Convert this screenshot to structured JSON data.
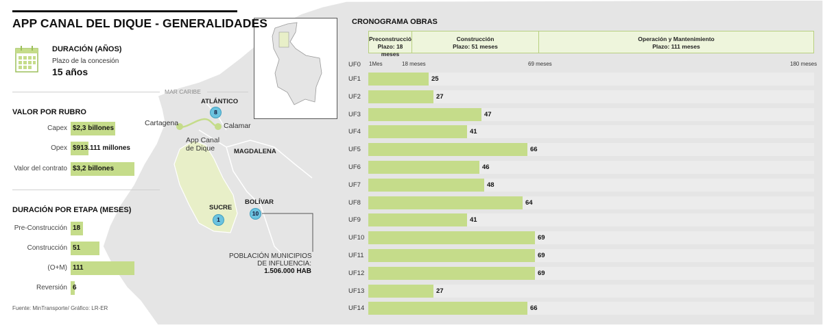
{
  "title": "APP CANAL DEL DIQUE - GENERALIDADES",
  "duration": {
    "heading": "DURACIÓN (AÑOS)",
    "sublabel": "Plazo de la concesión",
    "value": "15 años"
  },
  "sea_label": "MAR CARIBE",
  "valor": {
    "heading": "VALOR POR RUBRO",
    "items": [
      {
        "label": "Capex",
        "value": "$2,3 billones"
      },
      {
        "label": "Opex",
        "value": "$913.111 millones"
      },
      {
        "label": "Valor del contrato",
        "value": "$3,2 billones"
      }
    ]
  },
  "etapa": {
    "heading": "DURACIÓN POR ETAPA (MESES)",
    "items": [
      {
        "label": "Pre-Construcción",
        "value": 18
      },
      {
        "label": "Construcción",
        "value": 51
      },
      {
        "label": "(O+M)",
        "value": 111
      },
      {
        "label": "Reversión",
        "value": 6
      }
    ]
  },
  "source": "Fuente: MinTransporte/ Gráfico: LR-ER",
  "map": {
    "atlantico": {
      "name": "ATLÁNTICO",
      "count": "8"
    },
    "magdalena": "MAGDALENA",
    "sucre": {
      "name": "SUCRE",
      "count": "1"
    },
    "bolivar": {
      "name": "BOLÍVAR",
      "count": "10"
    },
    "cartagena": "Cartagena",
    "calamar": "Calamar",
    "canal_line1": "App Canal",
    "canal_line2": "de Dique",
    "pop_line1": "POBLACIÓN MUNICIPIOS",
    "pop_line2": "DE INFLUENCIA:",
    "pop_value": "1.506.000 HAB"
  },
  "cronograma": {
    "heading": "CRONOGRAMA OBRAS",
    "phases": [
      {
        "name": "Preconstrucción",
        "plazo": "Plazo: 18 meses"
      },
      {
        "name": "Construcción",
        "plazo": "Plazo: 51 meses"
      },
      {
        "name": "Operación y Mantenimiento",
        "plazo": "Plazo: 111 meses"
      }
    ],
    "axis_label": "UF0",
    "ticks": [
      "1Mes",
      "18 meses",
      "69 meses",
      "180 meses"
    ]
  },
  "chart_data": {
    "type": "bar",
    "orientation": "horizontal",
    "title": "CRONOGRAMA OBRAS",
    "categories": [
      "UF1",
      "UF2",
      "UF3",
      "UF4",
      "UF5",
      "UF6",
      "UF7",
      "UF8",
      "UF9",
      "UF10",
      "UF11",
      "UF12",
      "UF13",
      "UF14"
    ],
    "values": [
      25,
      27,
      47,
      41,
      66,
      46,
      48,
      64,
      41,
      69,
      69,
      69,
      27,
      66
    ],
    "xlim": [
      0,
      180
    ],
    "xlabel": "meses"
  },
  "colors": {
    "bar": "#c5dc8a",
    "badge": "#6cc3df",
    "map_land": "#e4e4e4",
    "map_highlight": "#e8efc8"
  }
}
